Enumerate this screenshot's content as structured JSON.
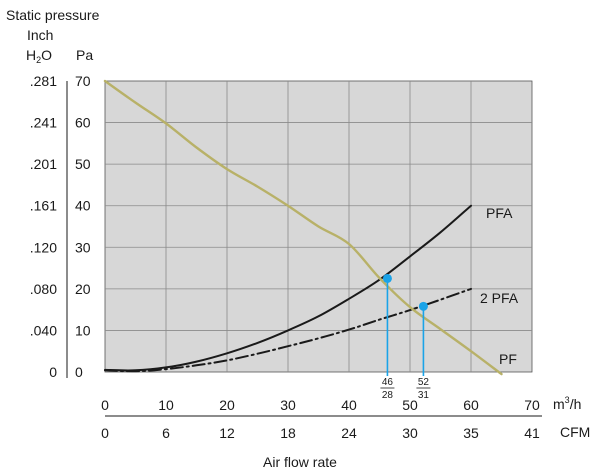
{
  "chart_data": {
    "type": "line",
    "title": "Static pressure",
    "left_axis": {
      "unit_line1": "Inch",
      "unit_line2_main": "H",
      "unit_line2_sub": "2",
      "unit_line2_tail": "O",
      "ticks": [
        ".281",
        ".241",
        ".201",
        ".161",
        ".120",
        ".080",
        ".040",
        "0"
      ]
    },
    "y_axis": {
      "label": "Pa",
      "ticks": [
        "70",
        "60",
        "50",
        "40",
        "30",
        "20",
        "10",
        "0"
      ],
      "ylim": [
        0,
        70
      ]
    },
    "x_axis": {
      "label": "Air flow rate",
      "unit_main": "m",
      "unit_sup": "3",
      "unit_tail": "/h",
      "ticks": [
        "0",
        "10",
        "20",
        "30",
        "40",
        "50",
        "60",
        "70"
      ],
      "xlim": [
        0,
        70
      ]
    },
    "x_axis_secondary": {
      "unit": "CFM",
      "ticks": [
        "0",
        "6",
        "12",
        "18",
        "24",
        "30",
        "35",
        "41"
      ]
    },
    "grid": true,
    "series": [
      {
        "name": "PFA",
        "style": "solid",
        "color": "#1a1a1a",
        "x": [
          0,
          5,
          10,
          15,
          20,
          25,
          30,
          35,
          40,
          45,
          50,
          55,
          60
        ],
        "y": [
          0.5,
          0.4,
          1.1,
          2.5,
          4.5,
          7.0,
          10.0,
          13.4,
          17.6,
          22.2,
          27.8,
          33.6,
          40.0
        ]
      },
      {
        "name": "2 PFA",
        "style": "dashdot",
        "color": "#1a1a1a",
        "x": [
          0,
          5,
          10,
          15,
          20,
          25,
          30,
          35,
          40,
          45,
          50,
          55,
          60
        ],
        "y": [
          0.4,
          0.2,
          0.7,
          1.6,
          2.8,
          4.4,
          6.2,
          8.1,
          10.2,
          12.6,
          14.9,
          17.4,
          20.0
        ]
      },
      {
        "name": "PF",
        "style": "solid",
        "color": "#b8b168",
        "x": [
          0,
          5,
          10,
          15,
          20,
          25,
          30,
          35,
          40,
          45,
          50,
          55,
          60,
          65
        ],
        "y": [
          70,
          64.8,
          59.8,
          54.0,
          48.8,
          44.6,
          40.0,
          35.0,
          30.8,
          22.6,
          15.6,
          10.3,
          5.0,
          -0.5
        ]
      }
    ],
    "annotations": [
      {
        "x": 46.3,
        "y": 22.5,
        "num": "46",
        "den": "28",
        "color": "#1aa3e8"
      },
      {
        "x": 52.2,
        "y": 15.8,
        "num": "52",
        "den": "31",
        "color": "#1aa3e8"
      }
    ]
  }
}
